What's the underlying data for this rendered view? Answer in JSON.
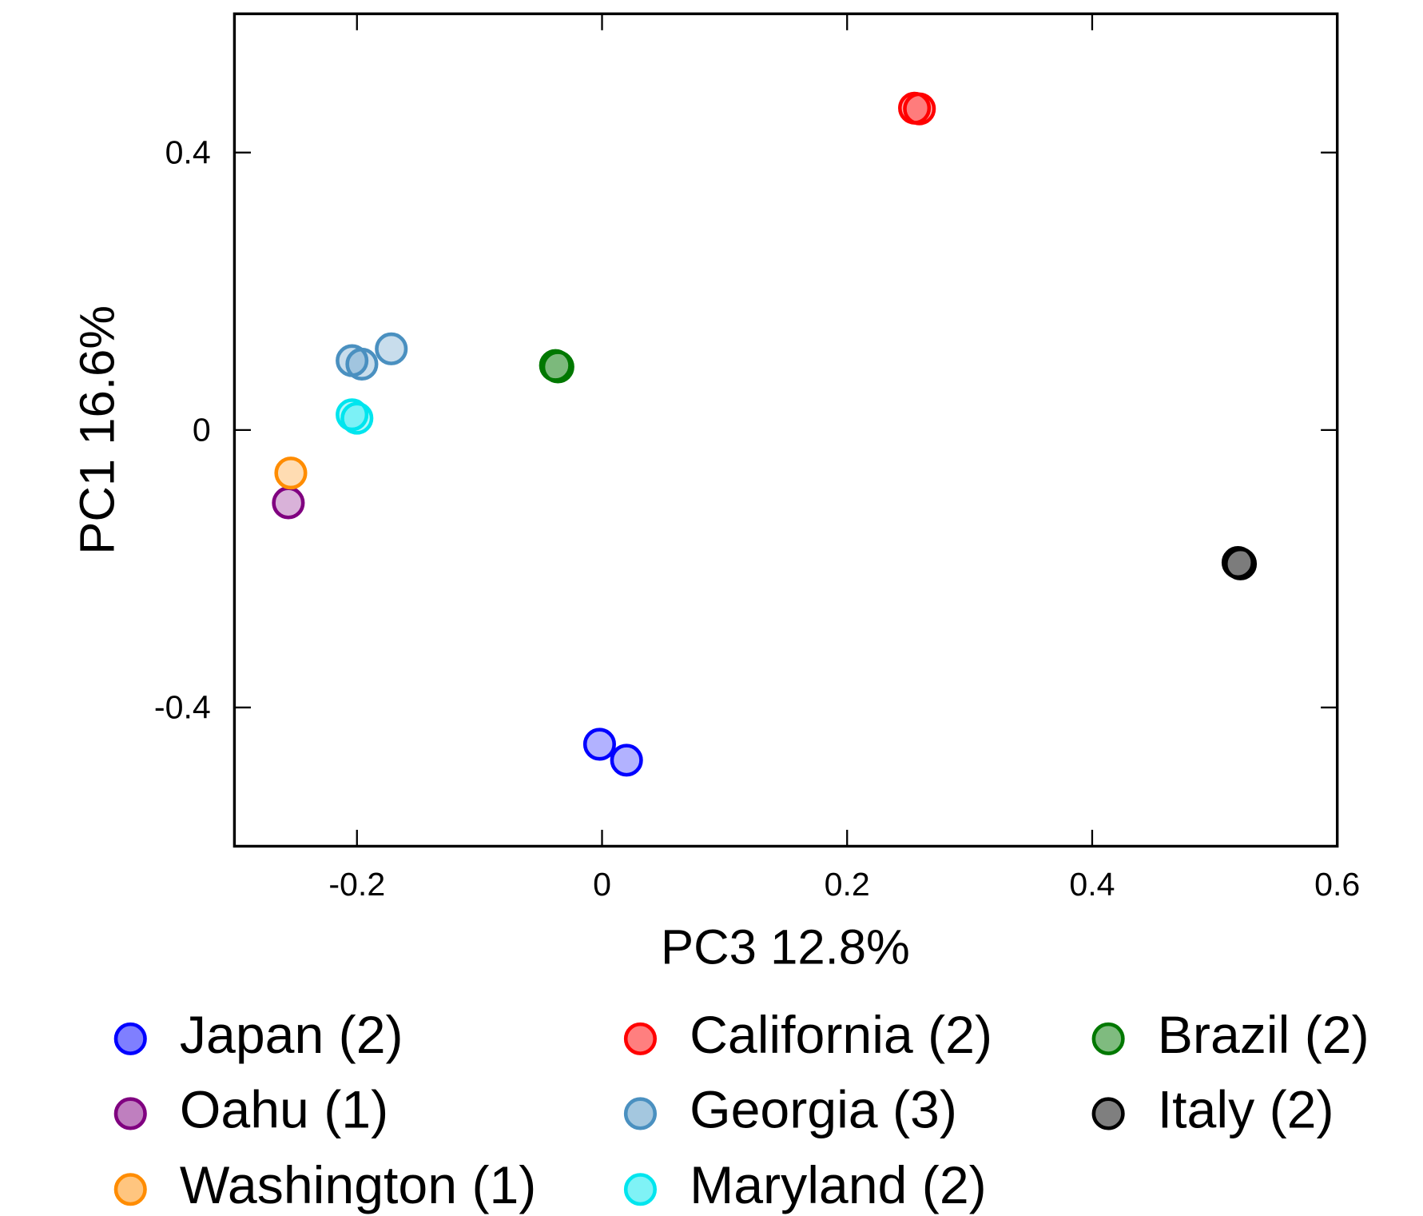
{
  "chart_data": {
    "type": "scatter",
    "x_label": "PC3  12.8%",
    "y_label": "PC1  16.6%",
    "xlim": [
      -0.3,
      0.6
    ],
    "xticks": [
      -0.2,
      0,
      0.2,
      0.4,
      0.6
    ],
    "ylim": [
      -0.6,
      0.6
    ],
    "yticks": [
      -0.4,
      0,
      0.4
    ],
    "series": [
      {
        "name": "Japan (2)",
        "color": "#0000ff",
        "x": [
          -0.002,
          0.02
        ],
        "y": [
          -0.453,
          -0.476
        ]
      },
      {
        "name": "Oahu (1)",
        "color": "#800080",
        "x": [
          -0.256
        ],
        "y": [
          -0.105
        ]
      },
      {
        "name": "Washington (1)",
        "color": "#ff8c00",
        "x": [
          -0.254
        ],
        "y": [
          -0.062
        ]
      },
      {
        "name": "California (2)",
        "color": "#ff0000",
        "x": [
          0.255,
          0.259
        ],
        "y": [
          0.464,
          0.463
        ]
      },
      {
        "name": "Georgia (3)",
        "color": "#4a90c0",
        "x": [
          -0.204,
          -0.196,
          -0.172
        ],
        "y": [
          0.1,
          0.095,
          0.117
        ]
      },
      {
        "name": "Maryland (2)",
        "color": "#00e5ee",
        "x": [
          -0.204,
          -0.2
        ],
        "y": [
          0.022,
          0.017
        ]
      },
      {
        "name": "Brazil (2)",
        "color": "#007800",
        "x": [
          -0.038,
          -0.036
        ],
        "y": [
          0.093,
          0.091
        ]
      },
      {
        "name": "Italy (2)",
        "color": "#000000",
        "x": [
          0.519,
          0.521
        ],
        "y": [
          -0.191,
          -0.193
        ]
      }
    ]
  }
}
